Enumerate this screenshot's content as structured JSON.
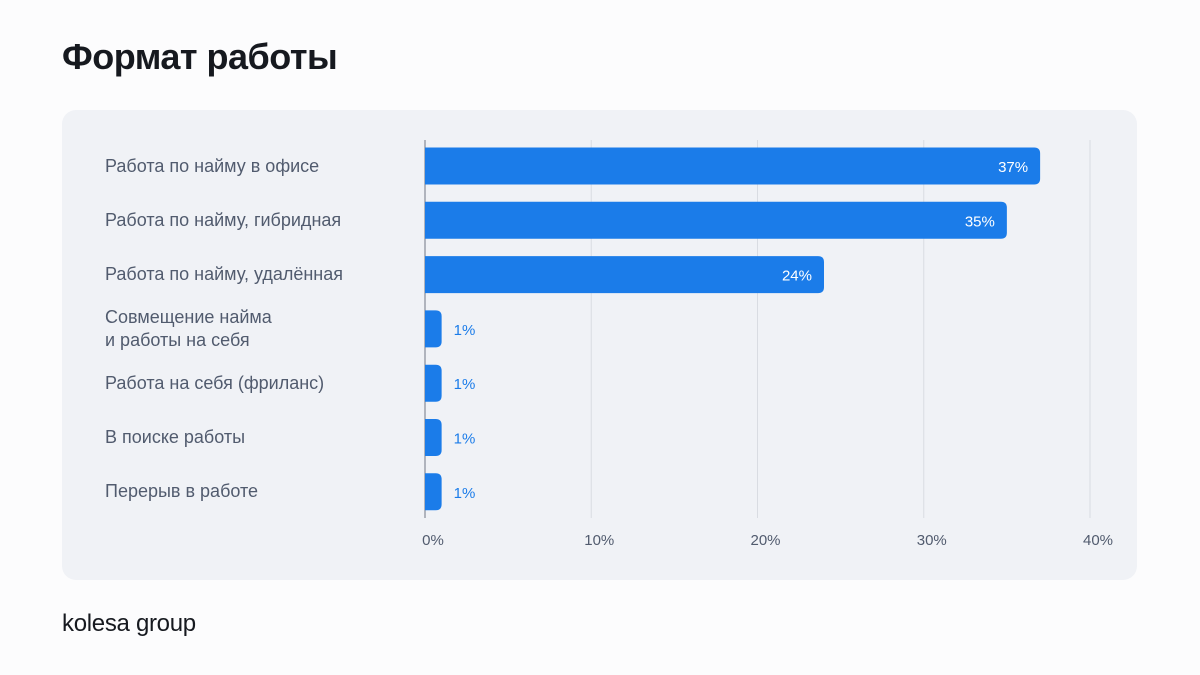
{
  "title": "Формат работы",
  "logo": "kolesa group",
  "colors": {
    "bar": "#1b7ce9",
    "inside_label": "#ffffff",
    "outside_label": "#1b7ce9",
    "card": "#f0f2f6"
  },
  "chart_data": {
    "type": "bar",
    "orientation": "horizontal",
    "categories": [
      "Работа по найму в офисе",
      "Работа по найму, гибридная",
      "Работа по найму, удалённая",
      "Совмещение найма\nи работы на себя",
      "Работа на себя (фриланс)",
      "В поиске работы",
      "Перерыв в работе"
    ],
    "values": [
      37,
      35,
      24,
      1,
      1,
      1,
      1
    ],
    "data_labels": [
      "37%",
      "35%",
      "24%",
      "1%",
      "1%",
      "1%",
      "1%"
    ],
    "xlim": [
      0,
      40
    ],
    "x_ticks": [
      "0%",
      "10%",
      "20%",
      "30%",
      "40%"
    ],
    "grid": true,
    "title": "Формат работы"
  }
}
